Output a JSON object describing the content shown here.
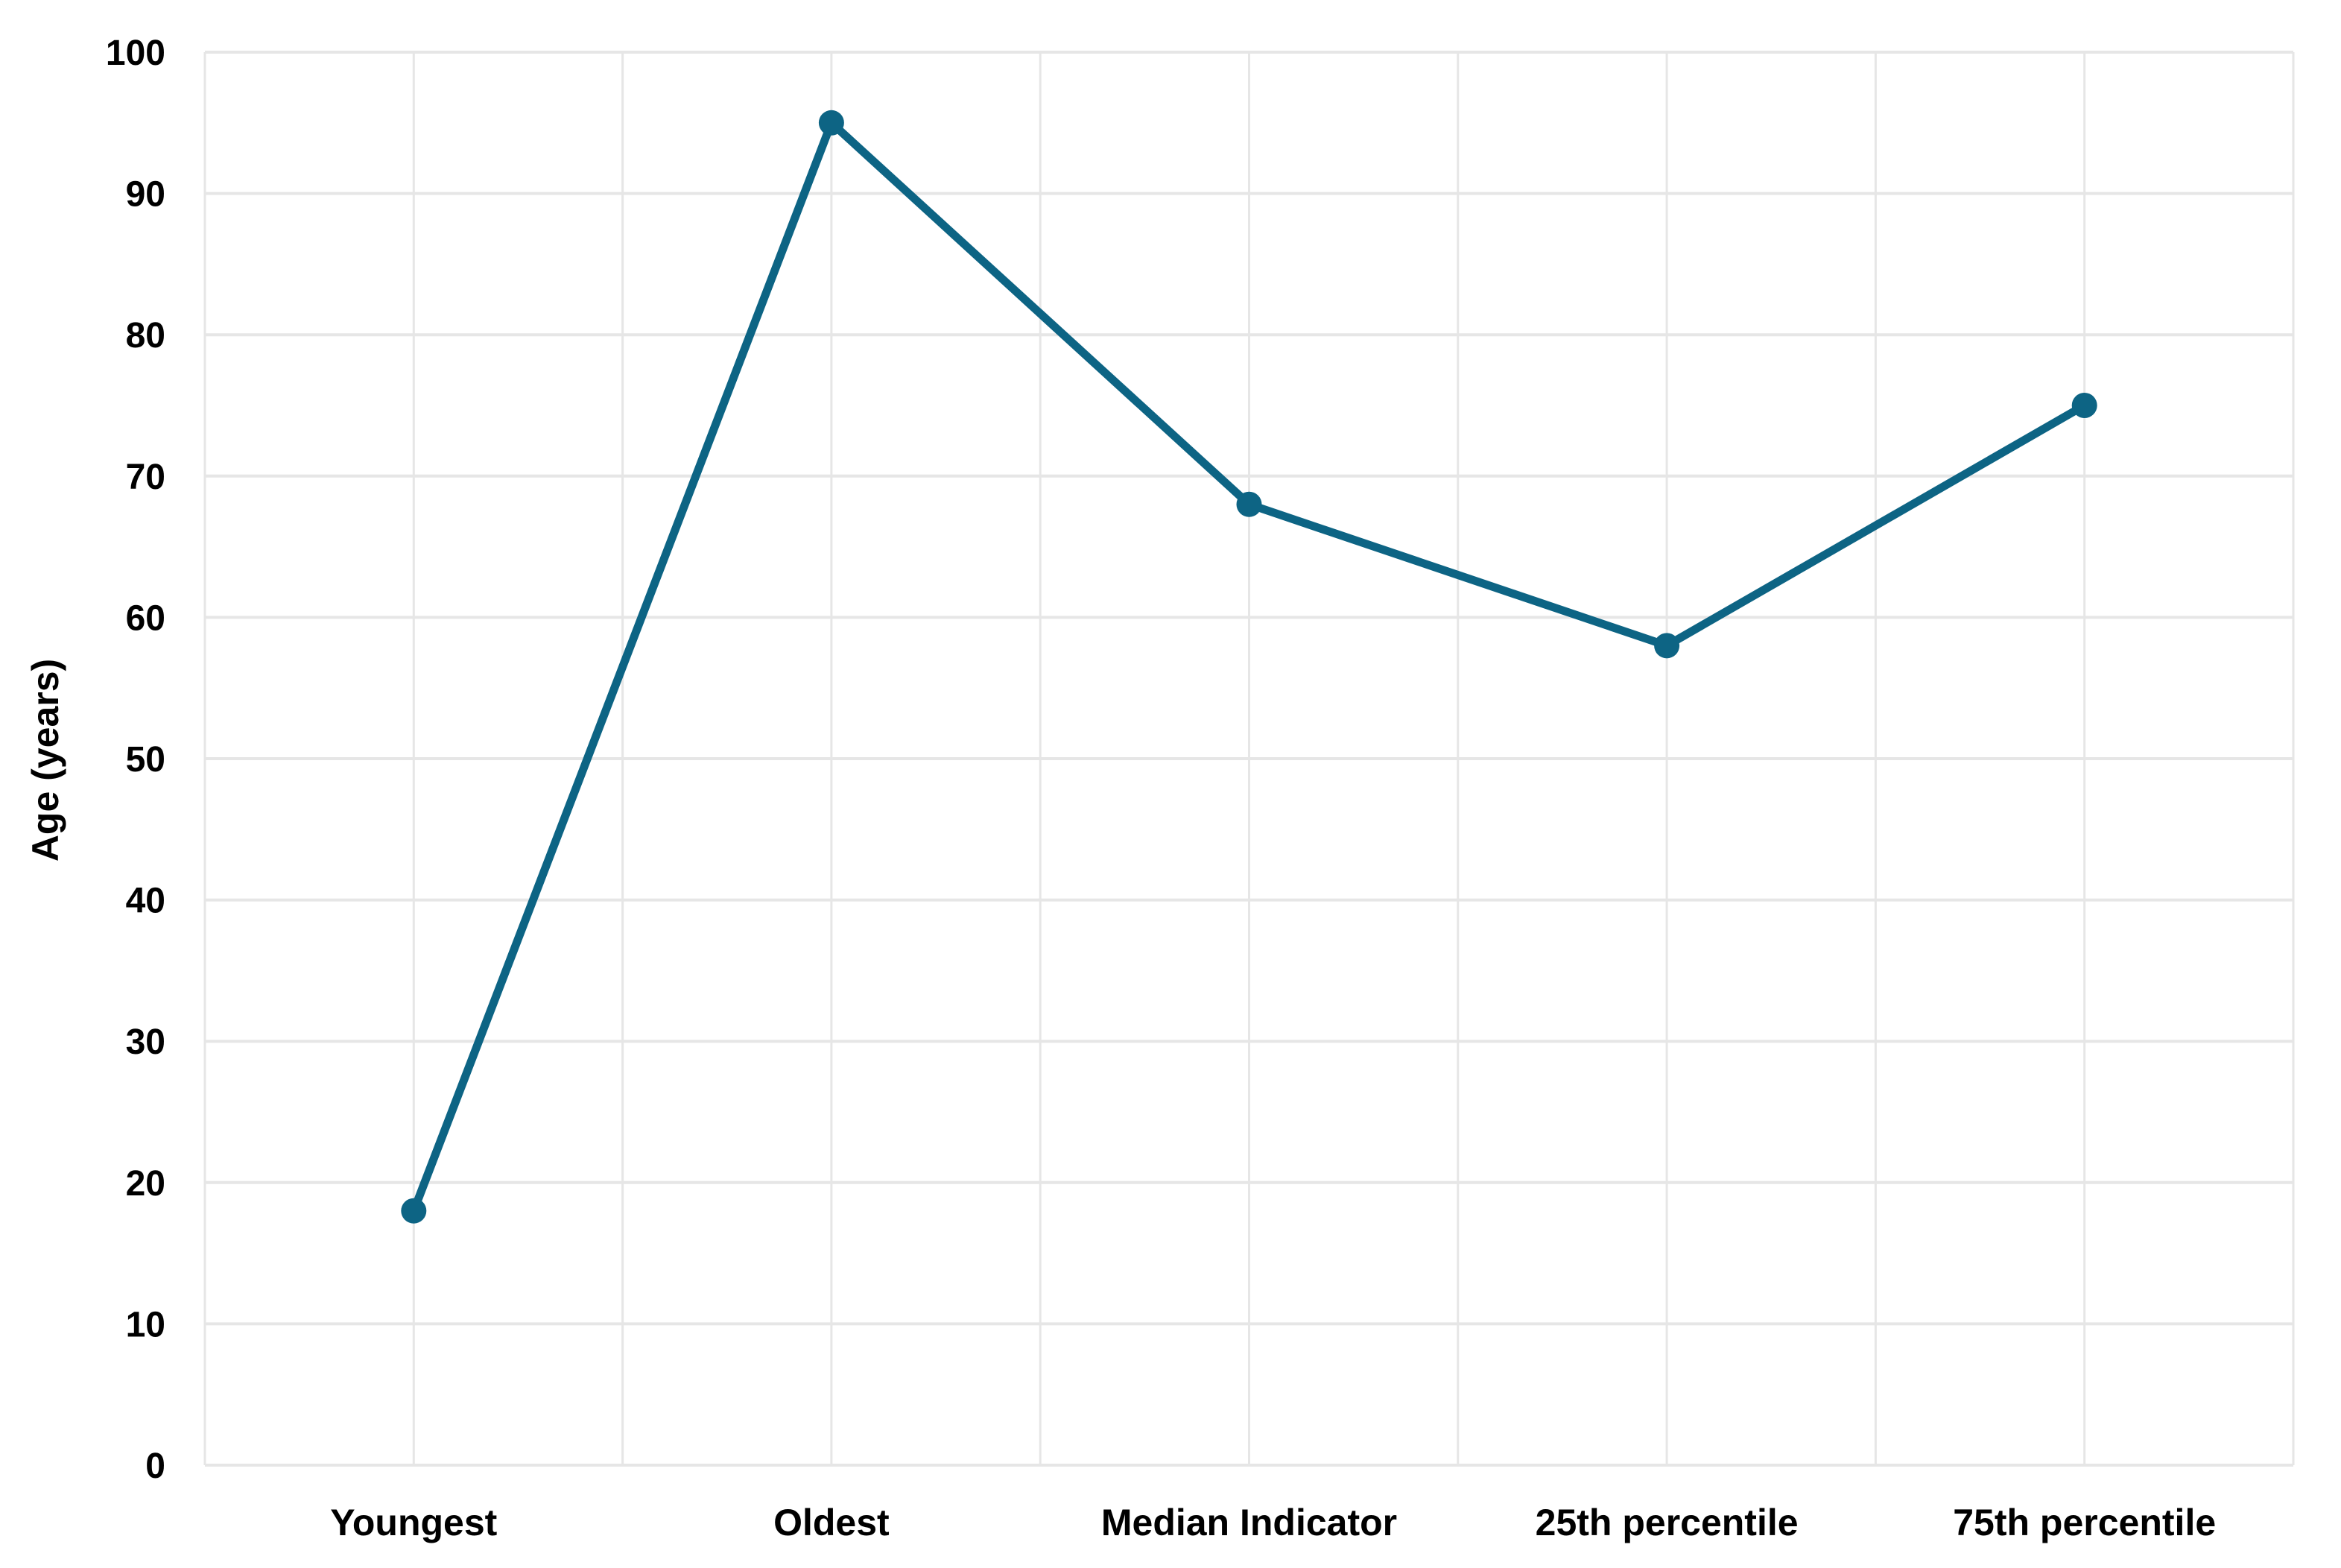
{
  "chart_data": {
    "type": "line",
    "title": "",
    "xlabel": "",
    "ylabel": "Age (years)",
    "categories": [
      "Youngest",
      "Oldest",
      "Median Indicator",
      "25th percentile",
      "75th percentile"
    ],
    "series": [
      {
        "values": [
          18,
          95,
          68,
          58,
          75
        ]
      }
    ],
    "ylim": [
      0,
      100
    ],
    "yticks": [
      0,
      10,
      20,
      30,
      40,
      50,
      60,
      70,
      80,
      90,
      100
    ],
    "yticks_labels": [
      "0",
      "10",
      "20",
      "30",
      "40",
      "50",
      "60",
      "70",
      "80",
      "90",
      "100"
    ],
    "grid": true,
    "legend": "none",
    "colors": {
      "series": "#0d6484",
      "grid": "#e6e6e6",
      "text": "#000000"
    }
  }
}
